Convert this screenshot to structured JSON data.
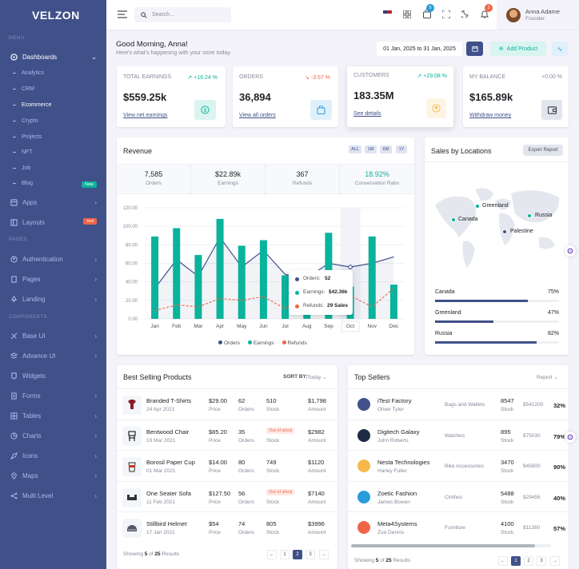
{
  "brand": {
    "logo": "VELZON"
  },
  "sidebar": {
    "menu_label": "MENU",
    "pages_label": "PAGES",
    "components_label": "COMPONENTS",
    "dashboards": "Dashboards",
    "sub": [
      "Analytics",
      "CRM",
      "Ecommerce",
      "Crypto",
      "Projects",
      "NFT",
      "Job",
      "Blog"
    ],
    "blog_badge": "New",
    "apps": "Apps",
    "layouts": "Layouts",
    "layouts_badge": "Hot",
    "authentication": "Authentication",
    "pages": "Pages",
    "landing": "Landing",
    "base_ui": "Base UI",
    "advance_ui": "Advance UI",
    "widgets": "Widgets",
    "forms": "Forms",
    "tables": "Tables",
    "charts": "Charts",
    "icons": "Icons",
    "maps": "Maps",
    "multi_level": "Multi Level"
  },
  "topbar": {
    "search_placeholder": "Search...",
    "cart_count": "5",
    "notif_count": "3",
    "user_name": "Anna Adame",
    "user_role": "Founder"
  },
  "greeting": {
    "title": "Good Morning, Anna!",
    "subtitle": "Here's what's happening with your store today.",
    "date_range": "01 Jan, 2025 to 31 Jan, 2025",
    "add_product": "Add Product"
  },
  "stats": [
    {
      "label": "TOTAL EARNINGS",
      "change": "+16.24 %",
      "value": "$559.25k",
      "link": "View net earnings",
      "dir": "up"
    },
    {
      "label": "ORDERS",
      "change": "-3.57 %",
      "value": "36,894",
      "link": "View all orders",
      "dir": "down"
    },
    {
      "label": "CUSTOMERS",
      "change": "+29.08 %",
      "value": "183.35M",
      "link": "See details",
      "dir": "up"
    },
    {
      "label": "MY BALANCE",
      "change": "+0.00 %",
      "value": "$165.89k",
      "link": "Withdraw money",
      "dir": "flat"
    }
  ],
  "revenue": {
    "title": "Revenue",
    "periods": [
      "ALL",
      "1M",
      "6M",
      "1Y"
    ],
    "kpis": [
      {
        "value": "7,585",
        "label": "Orders"
      },
      {
        "value": "$22.89k",
        "label": "Earnings"
      },
      {
        "value": "367",
        "label": "Refunds"
      },
      {
        "value": "18.92%",
        "label": "Conversation Ratio"
      }
    ],
    "tooltip": {
      "orders_label": "Orders:",
      "orders_value": "52",
      "earnings_label": "Earnings:",
      "earnings_value": "$42.36k",
      "refunds_label": "Refunds:",
      "refunds_value": "29 Sales"
    },
    "legend": [
      "Orders",
      "Earnings",
      "Refunds"
    ]
  },
  "chart_data": {
    "type": "bar",
    "categories": [
      "Jan",
      "Feb",
      "Mar",
      "Apr",
      "May",
      "Jun",
      "Jul",
      "Aug",
      "Sep",
      "Oct",
      "Nov",
      "Dec"
    ],
    "yticks": [
      "0.00",
      "20.00",
      "40.00",
      "60.00",
      "80.00",
      "100.00",
      "120.00"
    ],
    "ylim": [
      0,
      120
    ],
    "series": [
      {
        "name": "Earnings",
        "type": "bar",
        "values": [
          89,
          98,
          69,
          108,
          79,
          85,
          47,
          37,
          93,
          35,
          89,
          37
        ]
      },
      {
        "name": "Orders",
        "type": "area",
        "values": [
          33,
          64,
          46,
          88,
          56,
          74,
          48,
          44,
          60,
          56,
          60,
          67
        ]
      },
      {
        "name": "Refunds",
        "type": "line",
        "values": [
          9,
          15,
          13,
          22,
          20,
          24,
          11,
          30,
          7,
          25,
          13,
          33
        ]
      }
    ],
    "colors": {
      "Earnings": "#0ab39c",
      "Orders": "#405189",
      "Refunds": "#f06548"
    }
  },
  "sales_by_locations": {
    "title": "Sales by Locations",
    "export": "Export Report",
    "map_labels": [
      "Greenland",
      "Canada",
      "Russia",
      "Palestine"
    ],
    "bars": [
      {
        "name": "Canada",
        "pct": "75%",
        "value": 0.75
      },
      {
        "name": "Greenland",
        "pct": "47%",
        "value": 0.47
      },
      {
        "name": "Russia",
        "pct": "82%",
        "value": 0.82
      }
    ]
  },
  "best_selling": {
    "title": "Best Selling Products",
    "sort_label": "SORT BY:",
    "sort_value": "Today",
    "rows": [
      {
        "name": "Branded T-Shirts",
        "date": "24 Apr 2021",
        "price": "$29.00",
        "orders": "62",
        "stock": "510",
        "amount": "$1,798",
        "out": false
      },
      {
        "name": "Bentwood Chair",
        "date": "19 Mar 2021",
        "price": "$85.20",
        "orders": "35",
        "stock": "Out of stock",
        "amount": "$2982",
        "out": true
      },
      {
        "name": "Borosil Paper Cup",
        "date": "01 Mar 2021",
        "price": "$14.00",
        "orders": "80",
        "stock": "749",
        "amount": "$1120",
        "out": false
      },
      {
        "name": "One Seater Sofa",
        "date": "11 Feb 2021",
        "price": "$127.50",
        "orders": "56",
        "stock": "Out of stock",
        "amount": "$7140",
        "out": true
      },
      {
        "name": "Stillbird Helmet",
        "date": "17 Jan 2021",
        "price": "$54",
        "orders": "74",
        "stock": "805",
        "amount": "$3996",
        "out": false
      }
    ],
    "col_price": "Price",
    "col_orders": "Orders",
    "col_stock": "Stock",
    "col_amount": "Amount",
    "footer": {
      "pre": "Showing ",
      "shown": "5",
      "mid": " of ",
      "total": "25",
      "post": " Results"
    },
    "pages": [
      "←",
      "1",
      "2",
      "3",
      "→"
    ]
  },
  "top_sellers": {
    "title": "Top Sellers",
    "report": "Report",
    "rows": [
      {
        "name": "iTest Factory",
        "person": "Oliver Tyler",
        "category": "Bags and Wallets",
        "stock": "8547",
        "amount": "$541200",
        "pct": "32%",
        "color": "#405189"
      },
      {
        "name": "Digitech Galaxy",
        "person": "John Roberts",
        "category": "Watches",
        "stock": "895",
        "amount": "$75030",
        "pct": "79%",
        "color": "#1f2a44"
      },
      {
        "name": "Nesta Technologies",
        "person": "Harley Fuller",
        "category": "Bike Accessories",
        "stock": "3470",
        "amount": "$45600",
        "pct": "90%",
        "color": "#f7b84b"
      },
      {
        "name": "Zoetic Fashion",
        "person": "James Bowen",
        "category": "Clothes",
        "stock": "5488",
        "amount": "$29456",
        "pct": "40%",
        "color": "#299cdb"
      },
      {
        "name": "Meta4Systems",
        "person": "Zoe Dennis",
        "category": "Furniture",
        "stock": "4100",
        "amount": "$11260",
        "pct": "57%",
        "color": "#f06548"
      }
    ],
    "col_stock": "Stock",
    "footer": {
      "pre": "Showing ",
      "shown": "5",
      "mid": " of ",
      "total": "25",
      "post": " Results"
    },
    "pages": [
      "←",
      "1",
      "2",
      "3",
      "→"
    ]
  }
}
